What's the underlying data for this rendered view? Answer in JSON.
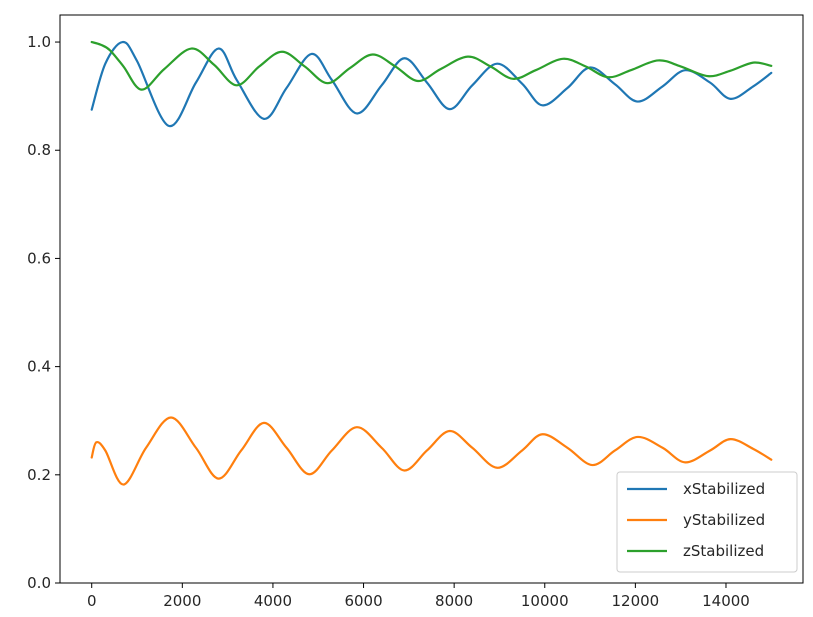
{
  "chart_data": {
    "type": "line",
    "title": "",
    "xlabel": "",
    "ylabel": "",
    "xlim": [
      -700,
      15700
    ],
    "ylim": [
      0.0,
      1.05
    ],
    "xticks": [
      0,
      2000,
      4000,
      6000,
      8000,
      10000,
      12000,
      14000
    ],
    "xtick_labels": [
      "0",
      "2000",
      "4000",
      "6000",
      "8000",
      "10000",
      "12000",
      "14000"
    ],
    "yticks": [
      0.0,
      0.2,
      0.4,
      0.6,
      0.8,
      1.0
    ],
    "ytick_labels": [
      "0.0",
      "0.2",
      "0.4",
      "0.6",
      "0.8",
      "1.0"
    ],
    "grid": false,
    "legend_position": "bottom-right",
    "series": [
      {
        "name": "xStabilized",
        "color": "#1f77b4",
        "x": [
          0,
          300,
          680,
          1000,
          1700,
          2300,
          2800,
          3200,
          3800,
          4300,
          4850,
          5300,
          5850,
          6400,
          6900,
          7400,
          7900,
          8400,
          8950,
          9500,
          9950,
          10500,
          11000,
          11550,
          12050,
          12600,
          13100,
          13650,
          14100,
          14600,
          15000
        ],
        "y": [
          0.875,
          0.96,
          1.0,
          0.965,
          0.845,
          0.925,
          0.988,
          0.93,
          0.858,
          0.915,
          0.978,
          0.93,
          0.868,
          0.92,
          0.97,
          0.925,
          0.876,
          0.92,
          0.96,
          0.923,
          0.883,
          0.915,
          0.953,
          0.922,
          0.89,
          0.918,
          0.948,
          0.925,
          0.895,
          0.918,
          0.943
        ]
      },
      {
        "name": "yStabilized",
        "color": "#ff7f0e",
        "x": [
          0,
          100,
          300,
          700,
          1200,
          1750,
          2300,
          2800,
          3300,
          3800,
          4300,
          4800,
          5300,
          5850,
          6400,
          6900,
          7400,
          7900,
          8400,
          8950,
          9500,
          9950,
          10500,
          11050,
          11550,
          12050,
          12600,
          13100,
          13650,
          14100,
          14600,
          15000
        ],
        "y": [
          0.232,
          0.26,
          0.245,
          0.182,
          0.25,
          0.306,
          0.25,
          0.193,
          0.245,
          0.296,
          0.25,
          0.201,
          0.245,
          0.288,
          0.25,
          0.208,
          0.245,
          0.281,
          0.25,
          0.213,
          0.245,
          0.275,
          0.25,
          0.218,
          0.245,
          0.27,
          0.25,
          0.223,
          0.245,
          0.266,
          0.248,
          0.228
        ]
      },
      {
        "name": "zStabilized",
        "color": "#2ca02c",
        "x": [
          0,
          200,
          400,
          700,
          1100,
          1600,
          2200,
          2700,
          3200,
          3700,
          4200,
          4700,
          5200,
          5700,
          6200,
          6700,
          7200,
          7700,
          8300,
          8800,
          9300,
          9800,
          10400,
          10900,
          11400,
          11900,
          12500,
          13000,
          13600,
          14100,
          14600,
          15000
        ],
        "y": [
          1.0,
          0.995,
          0.985,
          0.955,
          0.912,
          0.95,
          0.988,
          0.958,
          0.92,
          0.955,
          0.982,
          0.955,
          0.924,
          0.952,
          0.977,
          0.955,
          0.928,
          0.95,
          0.973,
          0.955,
          0.932,
          0.948,
          0.969,
          0.955,
          0.935,
          0.948,
          0.966,
          0.955,
          0.937,
          0.947,
          0.962,
          0.956
        ]
      }
    ]
  }
}
